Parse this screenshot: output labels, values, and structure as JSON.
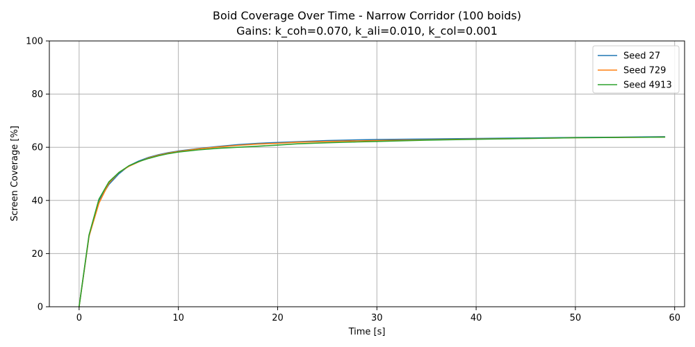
{
  "chart_data": {
    "type": "line",
    "title": "Boid Coverage Over Time - Narrow Corridor  (100 boids)",
    "subtitle": "Gains: k_coh=0.070, k_ali=0.010, k_col=0.001",
    "xlabel": "Time [s]",
    "ylabel": "Screen Coverage [%]",
    "xlim": [
      -3,
      61
    ],
    "ylim": [
      0,
      100
    ],
    "xticks": [
      0,
      10,
      20,
      30,
      40,
      50,
      60
    ],
    "yticks": [
      0,
      20,
      40,
      60,
      80,
      100
    ],
    "grid": true,
    "legend_position": "top-right",
    "series": [
      {
        "name": "Seed 27",
        "color": "#1f77b4",
        "x": [
          0,
          1,
          2,
          3,
          4,
          5,
          6,
          7,
          8,
          9,
          10,
          12,
          14,
          16,
          18,
          20,
          22,
          25,
          28,
          30,
          35,
          40,
          45,
          50,
          55,
          59
        ],
        "y": [
          0,
          26.5,
          40,
          46,
          50,
          53,
          54.8,
          56.2,
          57.2,
          58,
          58.6,
          59.5,
          60.3,
          61,
          61.5,
          61.8,
          62.1,
          62.5,
          62.8,
          62.9,
          63.1,
          63.3,
          63.5,
          63.7,
          63.8,
          64
        ]
      },
      {
        "name": "Seed 729",
        "color": "#ff7f0e",
        "x": [
          0,
          1,
          2,
          3,
          4,
          5,
          6,
          7,
          8,
          9,
          10,
          12,
          14,
          16,
          18,
          20,
          22,
          25,
          28,
          30,
          35,
          40,
          45,
          50,
          55,
          59
        ],
        "y": [
          0,
          26.5,
          39,
          46.5,
          50.5,
          52.8,
          54.5,
          56,
          57,
          57.8,
          58.4,
          59.4,
          60.1,
          60.7,
          61.2,
          61.5,
          61.9,
          62.2,
          62.4,
          62.5,
          62.8,
          63.1,
          63.3,
          63.6,
          63.7,
          63.8
        ]
      },
      {
        "name": "Seed 4913",
        "color": "#2ca02c",
        "x": [
          0,
          1,
          2,
          3,
          4,
          5,
          6,
          7,
          8,
          9,
          10,
          12,
          14,
          16,
          18,
          20,
          22,
          25,
          28,
          30,
          35,
          40,
          45,
          50,
          55,
          59
        ],
        "y": [
          0,
          27,
          40.5,
          47,
          50.5,
          53,
          54.6,
          55.8,
          56.8,
          57.6,
          58.2,
          59,
          59.6,
          60,
          60.4,
          60.8,
          61.3,
          61.7,
          62,
          62.2,
          62.7,
          63,
          63.3,
          63.6,
          63.7,
          63.8
        ]
      }
    ]
  }
}
